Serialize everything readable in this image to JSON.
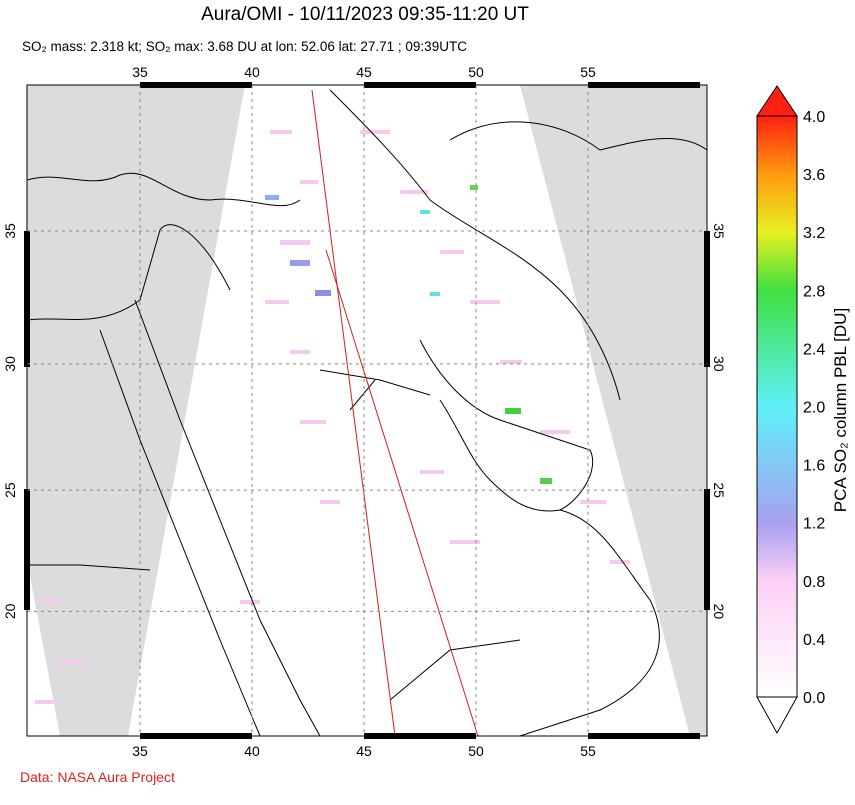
{
  "header": {
    "title": "Aura/OMI - 10/11/2023 09:35-11:20 UT",
    "subtitle": "SO₂ mass: 2.318 kt; SO₂ max: 3.68 DU at lon: 52.06 lat: 27.71 ; 09:39UTC"
  },
  "map": {
    "lon_ticks": [
      35,
      40,
      45,
      50,
      55
    ],
    "lat_ticks": [
      35,
      30,
      25,
      20
    ]
  },
  "colorbar": {
    "label": "PCA SO₂ column PBL [DU]",
    "ticks": [
      "4.0",
      "3.6",
      "3.2",
      "2.8",
      "2.4",
      "2.0",
      "1.6",
      "1.2",
      "0.8",
      "0.4",
      "0.0"
    ]
  },
  "footer": {
    "credit": "Data: NASA Aura Project"
  }
}
